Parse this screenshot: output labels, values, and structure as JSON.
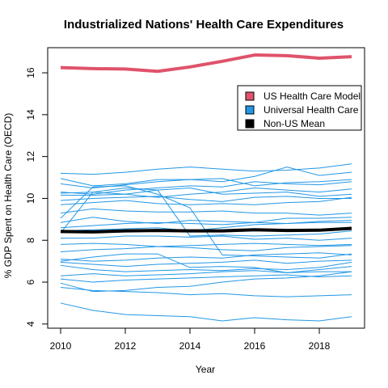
{
  "chart_data": {
    "type": "line",
    "title": "Industrialized Nations' Health Care Expenditures",
    "xlabel": "Year",
    "ylabel": "% GDP Spent on Health Care (OECD)",
    "xlim": [
      2009.6,
      2019.4
    ],
    "ylim": [
      3.8,
      17.2
    ],
    "xticks": [
      2010,
      2012,
      2014,
      2016,
      2018
    ],
    "yticks": [
      4,
      6,
      8,
      10,
      12,
      14,
      16
    ],
    "x": [
      2010,
      2011,
      2012,
      2013,
      2014,
      2015,
      2016,
      2017,
      2018,
      2019
    ],
    "legend": {
      "position": "top-right",
      "entries": [
        {
          "label": "US Health Care Model",
          "color": "#DF536B"
        },
        {
          "label": "Universal Health Care",
          "color": "#2297E6"
        },
        {
          "label": "Non-US Mean",
          "color": "#000000"
        }
      ]
    },
    "us_series": {
      "name": "US Health Care Model",
      "color": "#DF536B",
      "values": [
        16.25,
        16.2,
        16.18,
        16.07,
        16.28,
        16.55,
        16.85,
        16.82,
        16.7,
        16.77
      ]
    },
    "mean_series": {
      "name": "Non-US Mean",
      "color": "#000000",
      "values": [
        8.42,
        8.4,
        8.45,
        8.47,
        8.45,
        8.45,
        8.5,
        8.47,
        8.48,
        8.57
      ]
    },
    "universal_series": {
      "color": "#2297E6",
      "lines": [
        [
          11.2,
          11.15,
          11.25,
          11.4,
          11.5,
          11.4,
          11.3,
          11.35,
          11.45,
          11.65
        ],
        [
          10.95,
          10.6,
          10.7,
          10.9,
          10.9,
          10.8,
          11.05,
          11.5,
          11.1,
          11.25
        ],
        [
          10.7,
          10.5,
          10.65,
          10.8,
          10.9,
          10.95,
          10.6,
          10.75,
          10.8,
          10.9
        ],
        [
          10.3,
          10.2,
          10.4,
          10.5,
          10.6,
          10.55,
          10.8,
          10.7,
          10.65,
          10.8
        ],
        [
          10.25,
          10.3,
          10.2,
          10.05,
          10.2,
          10.3,
          10.5,
          10.4,
          10.3,
          10.45
        ],
        [
          10.15,
          10.15,
          10.2,
          10.4,
          10.5,
          10.2,
          10.25,
          10.3,
          10.1,
          10.2
        ],
        [
          9.9,
          10.0,
          10.05,
          10.1,
          9.95,
          9.85,
          10.05,
          10.1,
          10.0,
          10.0
        ],
        [
          9.7,
          9.8,
          9.9,
          9.75,
          9.7,
          9.75,
          9.7,
          9.8,
          9.85,
          10.05
        ],
        [
          9.3,
          9.5,
          9.4,
          9.35,
          9.35,
          9.4,
          9.3,
          9.3,
          9.2,
          9.3
        ],
        [
          9.05,
          10.55,
          10.6,
          10.2,
          9.55,
          7.3,
          7.25,
          7.2,
          7.15,
          7.35
        ],
        [
          8.85,
          9.1,
          8.9,
          8.8,
          8.95,
          8.9,
          8.85,
          8.8,
          8.9,
          8.95
        ],
        [
          8.6,
          8.7,
          8.8,
          8.85,
          8.8,
          8.75,
          8.85,
          9.05,
          9.05,
          9.1
        ],
        [
          8.45,
          8.5,
          8.55,
          8.6,
          8.45,
          8.6,
          8.75,
          8.8,
          8.85,
          8.85
        ],
        [
          8.35,
          10.3,
          10.5,
          10.4,
          8.2,
          8.25,
          8.2,
          8.25,
          8.3,
          8.45
        ],
        [
          8.1,
          8.1,
          8.2,
          8.2,
          8.15,
          8.2,
          8.05,
          8.1,
          8.0,
          8.1
        ],
        [
          7.8,
          7.85,
          7.8,
          7.7,
          7.75,
          7.8,
          7.85,
          7.8,
          7.75,
          7.8
        ],
        [
          7.45,
          7.55,
          7.6,
          7.7,
          7.65,
          7.55,
          7.5,
          7.65,
          7.7,
          7.75
        ],
        [
          7.1,
          7.0,
          7.05,
          7.15,
          7.2,
          7.15,
          7.3,
          7.35,
          7.4,
          7.3
        ],
        [
          6.95,
          6.85,
          6.75,
          6.85,
          6.9,
          6.95,
          7.05,
          6.9,
          7.0,
          7.05
        ],
        [
          6.8,
          6.6,
          6.5,
          6.55,
          6.6,
          6.55,
          6.65,
          6.6,
          6.7,
          6.95
        ],
        [
          6.3,
          6.4,
          6.3,
          6.35,
          6.4,
          6.5,
          6.55,
          6.45,
          6.5,
          6.5
        ],
        [
          6.15,
          6.0,
          6.1,
          6.15,
          6.2,
          6.25,
          6.3,
          6.35,
          6.25,
          6.3
        ],
        [
          5.95,
          5.55,
          5.6,
          5.75,
          5.8,
          6.0,
          6.15,
          6.2,
          6.3,
          6.5
        ],
        [
          5.75,
          5.6,
          5.55,
          5.5,
          5.4,
          5.45,
          5.35,
          5.3,
          5.35,
          5.4
        ],
        [
          5.0,
          4.65,
          4.45,
          4.4,
          4.35,
          4.15,
          4.3,
          4.2,
          4.15,
          4.35
        ],
        [
          7.0,
          7.2,
          7.35,
          7.35,
          6.7,
          6.75,
          6.7,
          6.45,
          6.6,
          6.75
        ]
      ]
    }
  }
}
